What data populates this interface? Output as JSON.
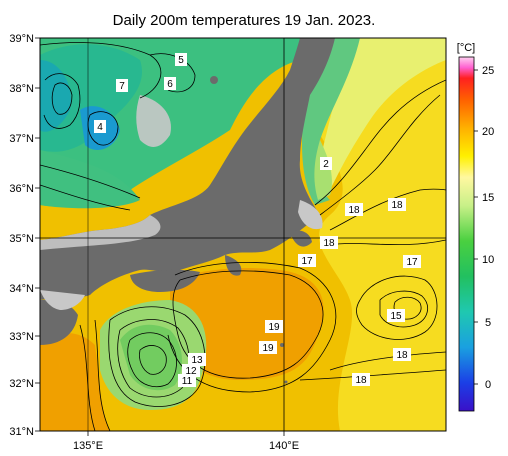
{
  "title": "Daily 200m temperatures 19 Jan. 2023.",
  "unit": "[°C]",
  "lat_labels": [
    "39°N",
    "38°N",
    "37°N",
    "36°N",
    "35°N",
    "34°N",
    "33°N",
    "32°N",
    "31°N"
  ],
  "lon_labels": [
    "135°E",
    "140°E"
  ],
  "colorbar_ticks": [
    "25",
    "20",
    "15",
    "10",
    "5",
    "0"
  ],
  "contour_labels": [
    {
      "id": "l5",
      "text": "5"
    },
    {
      "id": "l7",
      "text": "7"
    },
    {
      "id": "l6",
      "text": "6"
    },
    {
      "id": "l4",
      "text": "4"
    },
    {
      "id": "l2",
      "text": "2"
    },
    {
      "id": "l18a",
      "text": "18"
    },
    {
      "id": "l18b",
      "text": "18"
    },
    {
      "id": "l18c",
      "text": "18"
    },
    {
      "id": "l17a",
      "text": "17"
    },
    {
      "id": "l17b",
      "text": "17"
    },
    {
      "id": "l15",
      "text": "15"
    },
    {
      "id": "l19a",
      "text": "19"
    },
    {
      "id": "l19b",
      "text": "19"
    },
    {
      "id": "l18d",
      "text": "18"
    },
    {
      "id": "l18e",
      "text": "18"
    },
    {
      "id": "l13",
      "text": "13"
    },
    {
      "id": "l12",
      "text": "12"
    },
    {
      "id": "l11",
      "text": "11"
    }
  ],
  "colors": {
    "land": "#6b6b6b",
    "nodata": "#c8c8c8",
    "grid": "#000000"
  }
}
